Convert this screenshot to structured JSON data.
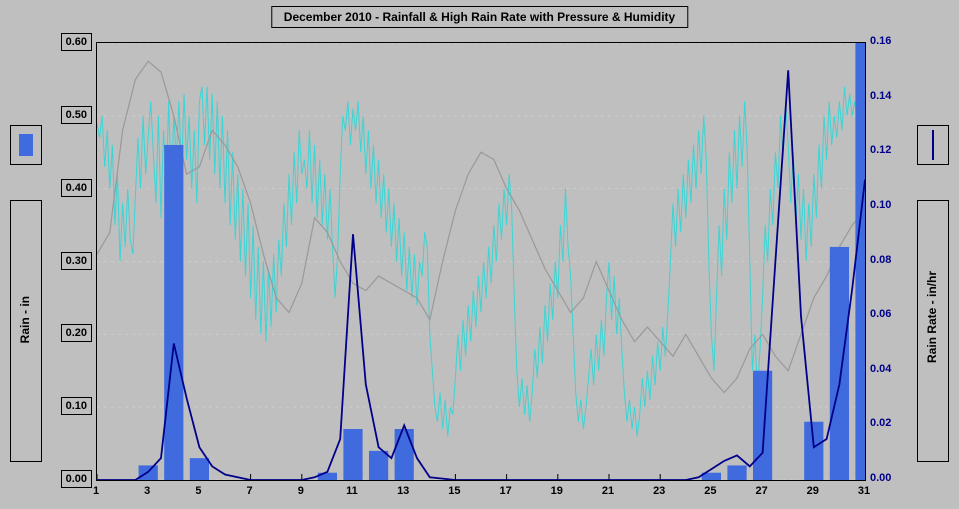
{
  "title": "December 2010 - Rainfall & High Rain Rate with Pressure & Humidity",
  "left_axis": {
    "label": "Rain - in",
    "min": 0.0,
    "max": 0.6,
    "ticks": [
      0.0,
      0.1,
      0.2,
      0.3,
      0.4,
      0.5,
      0.6
    ],
    "tick_labels": [
      "0.00",
      "0.10",
      "0.20",
      "0.30",
      "0.40",
      "0.50",
      "0.60"
    ],
    "color": "#000000"
  },
  "right_axis": {
    "label": "Rain Rate - in/hr",
    "min": 0.0,
    "max": 0.16,
    "ticks": [
      0.0,
      0.02,
      0.04,
      0.06,
      0.08,
      0.1,
      0.12,
      0.14,
      0.16
    ],
    "tick_labels": [
      "0.00",
      "0.02",
      "0.04",
      "0.06",
      "0.08",
      "0.10",
      "0.12",
      "0.14",
      "0.16"
    ],
    "color": "#00008b"
  },
  "x_axis": {
    "min": 1,
    "max": 31,
    "ticks": [
      1,
      3,
      5,
      7,
      9,
      11,
      13,
      15,
      17,
      19,
      21,
      23,
      25,
      27,
      29,
      31
    ],
    "tick_color": "#000000"
  },
  "bars": {
    "color": "#3f6bdf",
    "width": 0.75,
    "data": [
      {
        "x": 3,
        "y": 0.02
      },
      {
        "x": 4,
        "y": 0.46
      },
      {
        "x": 5,
        "y": 0.03
      },
      {
        "x": 10,
        "y": 0.01
      },
      {
        "x": 11,
        "y": 0.07
      },
      {
        "x": 12,
        "y": 0.04
      },
      {
        "x": 13,
        "y": 0.07
      },
      {
        "x": 25,
        "y": 0.01
      },
      {
        "x": 26,
        "y": 0.02
      },
      {
        "x": 27,
        "y": 0.15
      },
      {
        "x": 29,
        "y": 0.08
      },
      {
        "x": 30,
        "y": 0.32
      },
      {
        "x": 31,
        "y": 0.6
      }
    ]
  },
  "rate_line": {
    "color": "#00008b",
    "width": 1.8,
    "points": [
      [
        1,
        0.0
      ],
      [
        2,
        0.0
      ],
      [
        2.5,
        0.0
      ],
      [
        3,
        0.003
      ],
      [
        3.5,
        0.008
      ],
      [
        4,
        0.05
      ],
      [
        4.5,
        0.03
      ],
      [
        5,
        0.012
      ],
      [
        5.5,
        0.005
      ],
      [
        6,
        0.002
      ],
      [
        7,
        0.0
      ],
      [
        8,
        0.0
      ],
      [
        9,
        0.0
      ],
      [
        9.5,
        0.001
      ],
      [
        10,
        0.003
      ],
      [
        10.5,
        0.015
      ],
      [
        11,
        0.09
      ],
      [
        11.5,
        0.035
      ],
      [
        12,
        0.012
      ],
      [
        12.5,
        0.008
      ],
      [
        13,
        0.02
      ],
      [
        13.5,
        0.008
      ],
      [
        14,
        0.001
      ],
      [
        15,
        0.0
      ],
      [
        16,
        0.0
      ],
      [
        17,
        0.0
      ],
      [
        18,
        0.0
      ],
      [
        19,
        0.0
      ],
      [
        20,
        0.0
      ],
      [
        21,
        0.0
      ],
      [
        22,
        0.0
      ],
      [
        23,
        0.0
      ],
      [
        24,
        0.0
      ],
      [
        24.5,
        0.001
      ],
      [
        25,
        0.004
      ],
      [
        25.5,
        0.007
      ],
      [
        26,
        0.009
      ],
      [
        26.5,
        0.005
      ],
      [
        27,
        0.01
      ],
      [
        27.5,
        0.08
      ],
      [
        28,
        0.15
      ],
      [
        28.5,
        0.06
      ],
      [
        29,
        0.012
      ],
      [
        29.5,
        0.015
      ],
      [
        30,
        0.035
      ],
      [
        30.5,
        0.07
      ],
      [
        31,
        0.11
      ]
    ]
  },
  "pressure_line": {
    "color": "#999999",
    "width": 1.2,
    "points": [
      [
        1,
        0.31
      ],
      [
        1.5,
        0.34
      ],
      [
        2,
        0.48
      ],
      [
        2.5,
        0.55
      ],
      [
        3,
        0.575
      ],
      [
        3.5,
        0.56
      ],
      [
        4,
        0.5
      ],
      [
        4.5,
        0.42
      ],
      [
        5,
        0.43
      ],
      [
        5.5,
        0.48
      ],
      [
        6,
        0.46
      ],
      [
        6.5,
        0.43
      ],
      [
        7,
        0.38
      ],
      [
        7.5,
        0.31
      ],
      [
        8,
        0.25
      ],
      [
        8.5,
        0.23
      ],
      [
        9,
        0.27
      ],
      [
        9.5,
        0.36
      ],
      [
        10,
        0.34
      ],
      [
        10.5,
        0.3
      ],
      [
        11,
        0.27
      ],
      [
        11.5,
        0.26
      ],
      [
        12,
        0.28
      ],
      [
        12.5,
        0.27
      ],
      [
        13,
        0.26
      ],
      [
        13.5,
        0.25
      ],
      [
        14,
        0.22
      ],
      [
        14.5,
        0.3
      ],
      [
        15,
        0.37
      ],
      [
        15.5,
        0.42
      ],
      [
        16,
        0.45
      ],
      [
        16.5,
        0.44
      ],
      [
        17,
        0.4
      ],
      [
        17.5,
        0.37
      ],
      [
        18,
        0.33
      ],
      [
        18.5,
        0.29
      ],
      [
        19,
        0.26
      ],
      [
        19.5,
        0.23
      ],
      [
        20,
        0.25
      ],
      [
        20.5,
        0.3
      ],
      [
        21,
        0.26
      ],
      [
        21.5,
        0.22
      ],
      [
        22,
        0.19
      ],
      [
        22.5,
        0.21
      ],
      [
        23,
        0.19
      ],
      [
        23.5,
        0.17
      ],
      [
        24,
        0.2
      ],
      [
        24.5,
        0.17
      ],
      [
        25,
        0.14
      ],
      [
        25.5,
        0.12
      ],
      [
        26,
        0.14
      ],
      [
        26.5,
        0.18
      ],
      [
        27,
        0.2
      ],
      [
        27.5,
        0.17
      ],
      [
        28,
        0.15
      ],
      [
        28.5,
        0.2
      ],
      [
        29,
        0.25
      ],
      [
        29.5,
        0.28
      ],
      [
        30,
        0.32
      ],
      [
        30.5,
        0.35
      ],
      [
        31,
        0.37
      ]
    ]
  },
  "humidity_line": {
    "color": "#3bd5d5",
    "width": 1.0,
    "points": [
      [
        1,
        0.49
      ],
      [
        1.1,
        0.47
      ],
      [
        1.2,
        0.5
      ],
      [
        1.3,
        0.43
      ],
      [
        1.4,
        0.48
      ],
      [
        1.5,
        0.4
      ],
      [
        1.6,
        0.46
      ],
      [
        1.7,
        0.35
      ],
      [
        1.8,
        0.42
      ],
      [
        1.9,
        0.3
      ],
      [
        2,
        0.38
      ],
      [
        2.1,
        0.32
      ],
      [
        2.2,
        0.4
      ],
      [
        2.3,
        0.33
      ],
      [
        2.4,
        0.31
      ],
      [
        2.5,
        0.39
      ],
      [
        2.6,
        0.47
      ],
      [
        2.7,
        0.4
      ],
      [
        2.8,
        0.5
      ],
      [
        2.9,
        0.42
      ],
      [
        3,
        0.47
      ],
      [
        3.1,
        0.52
      ],
      [
        3.2,
        0.45
      ],
      [
        3.3,
        0.38
      ],
      [
        3.4,
        0.5
      ],
      [
        3.5,
        0.36
      ],
      [
        3.6,
        0.48
      ],
      [
        3.7,
        0.4
      ],
      [
        3.8,
        0.52
      ],
      [
        3.9,
        0.4
      ],
      [
        4,
        0.5
      ],
      [
        4.1,
        0.44
      ],
      [
        4.2,
        0.52
      ],
      [
        4.3,
        0.42
      ],
      [
        4.4,
        0.53
      ],
      [
        4.5,
        0.44
      ],
      [
        4.6,
        0.5
      ],
      [
        4.7,
        0.4
      ],
      [
        4.8,
        0.48
      ],
      [
        4.9,
        0.38
      ],
      [
        5,
        0.52
      ],
      [
        5.1,
        0.54
      ],
      [
        5.2,
        0.46
      ],
      [
        5.3,
        0.54
      ],
      [
        5.4,
        0.44
      ],
      [
        5.5,
        0.53
      ],
      [
        5.6,
        0.42
      ],
      [
        5.7,
        0.52
      ],
      [
        5.8,
        0.4
      ],
      [
        5.9,
        0.5
      ],
      [
        6,
        0.38
      ],
      [
        6.1,
        0.48
      ],
      [
        6.2,
        0.35
      ],
      [
        6.3,
        0.45
      ],
      [
        6.4,
        0.33
      ],
      [
        6.5,
        0.42
      ],
      [
        6.6,
        0.3
      ],
      [
        6.7,
        0.4
      ],
      [
        6.8,
        0.28
      ],
      [
        6.9,
        0.38
      ],
      [
        7,
        0.25
      ],
      [
        7.1,
        0.35
      ],
      [
        7.2,
        0.22
      ],
      [
        7.3,
        0.32
      ],
      [
        7.4,
        0.2
      ],
      [
        7.5,
        0.3
      ],
      [
        7.6,
        0.19
      ],
      [
        7.7,
        0.29
      ],
      [
        7.8,
        0.21
      ],
      [
        7.9,
        0.31
      ],
      [
        8,
        0.23
      ],
      [
        8.1,
        0.33
      ],
      [
        8.2,
        0.28
      ],
      [
        8.3,
        0.38
      ],
      [
        8.4,
        0.32
      ],
      [
        8.5,
        0.42
      ],
      [
        8.6,
        0.35
      ],
      [
        8.7,
        0.45
      ],
      [
        8.8,
        0.38
      ],
      [
        8.9,
        0.48
      ],
      [
        9,
        0.42
      ],
      [
        9.1,
        0.44
      ],
      [
        9.2,
        0.4
      ],
      [
        9.3,
        0.48
      ],
      [
        9.4,
        0.38
      ],
      [
        9.5,
        0.46
      ],
      [
        9.6,
        0.36
      ],
      [
        9.7,
        0.44
      ],
      [
        9.8,
        0.35
      ],
      [
        9.9,
        0.42
      ],
      [
        10,
        0.33
      ],
      [
        10.1,
        0.4
      ],
      [
        10.2,
        0.32
      ],
      [
        10.3,
        0.25
      ],
      [
        10.4,
        0.31
      ],
      [
        10.5,
        0.42
      ],
      [
        10.6,
        0.5
      ],
      [
        10.7,
        0.48
      ],
      [
        10.8,
        0.52
      ],
      [
        10.9,
        0.46
      ],
      [
        11,
        0.51
      ],
      [
        11.1,
        0.48
      ],
      [
        11.2,
        0.52
      ],
      [
        11.3,
        0.45
      ],
      [
        11.4,
        0.5
      ],
      [
        11.5,
        0.42
      ],
      [
        11.6,
        0.48
      ],
      [
        11.7,
        0.4
      ],
      [
        11.8,
        0.46
      ],
      [
        11.9,
        0.38
      ],
      [
        12,
        0.44
      ],
      [
        12.1,
        0.36
      ],
      [
        12.2,
        0.42
      ],
      [
        12.3,
        0.34
      ],
      [
        12.4,
        0.4
      ],
      [
        12.5,
        0.32
      ],
      [
        12.6,
        0.38
      ],
      [
        12.7,
        0.3
      ],
      [
        12.8,
        0.36
      ],
      [
        12.9,
        0.28
      ],
      [
        13,
        0.34
      ],
      [
        13.1,
        0.26
      ],
      [
        13.2,
        0.32
      ],
      [
        13.3,
        0.25
      ],
      [
        13.4,
        0.31
      ],
      [
        13.5,
        0.24
      ],
      [
        13.6,
        0.3
      ],
      [
        13.7,
        0.28
      ],
      [
        13.8,
        0.34
      ],
      [
        13.9,
        0.32
      ],
      [
        14,
        0.2
      ],
      [
        14.1,
        0.15
      ],
      [
        14.2,
        0.1
      ],
      [
        14.3,
        0.08
      ],
      [
        14.4,
        0.12
      ],
      [
        14.5,
        0.07
      ],
      [
        14.6,
        0.11
      ],
      [
        14.7,
        0.06
      ],
      [
        14.8,
        0.1
      ],
      [
        14.9,
        0.09
      ],
      [
        15,
        0.14
      ],
      [
        15.1,
        0.2
      ],
      [
        15.2,
        0.15
      ],
      [
        15.3,
        0.22
      ],
      [
        15.4,
        0.17
      ],
      [
        15.5,
        0.24
      ],
      [
        15.6,
        0.19
      ],
      [
        15.7,
        0.26
      ],
      [
        15.8,
        0.21
      ],
      [
        15.9,
        0.28
      ],
      [
        16,
        0.23
      ],
      [
        16.1,
        0.3
      ],
      [
        16.2,
        0.25
      ],
      [
        16.3,
        0.32
      ],
      [
        16.4,
        0.27
      ],
      [
        16.5,
        0.35
      ],
      [
        16.6,
        0.3
      ],
      [
        16.7,
        0.38
      ],
      [
        16.8,
        0.33
      ],
      [
        16.9,
        0.4
      ],
      [
        17,
        0.35
      ],
      [
        17.1,
        0.42
      ],
      [
        17.2,
        0.37
      ],
      [
        17.3,
        0.25
      ],
      [
        17.4,
        0.15
      ],
      [
        17.5,
        0.1
      ],
      [
        17.6,
        0.14
      ],
      [
        17.7,
        0.09
      ],
      [
        17.8,
        0.13
      ],
      [
        17.9,
        0.08
      ],
      [
        18,
        0.12
      ],
      [
        18.1,
        0.18
      ],
      [
        18.2,
        0.14
      ],
      [
        18.3,
        0.21
      ],
      [
        18.4,
        0.16
      ],
      [
        18.5,
        0.24
      ],
      [
        18.6,
        0.19
      ],
      [
        18.7,
        0.27
      ],
      [
        18.8,
        0.22
      ],
      [
        18.9,
        0.3
      ],
      [
        19,
        0.25
      ],
      [
        19.1,
        0.35
      ],
      [
        19.2,
        0.3
      ],
      [
        19.3,
        0.4
      ],
      [
        19.4,
        0.32
      ],
      [
        19.5,
        0.28
      ],
      [
        19.6,
        0.2
      ],
      [
        19.7,
        0.12
      ],
      [
        19.8,
        0.08
      ],
      [
        19.9,
        0.11
      ],
      [
        20,
        0.07
      ],
      [
        20.1,
        0.1
      ],
      [
        20.2,
        0.14
      ],
      [
        20.3,
        0.18
      ],
      [
        20.4,
        0.13
      ],
      [
        20.5,
        0.2
      ],
      [
        20.6,
        0.15
      ],
      [
        20.7,
        0.22
      ],
      [
        20.8,
        0.17
      ],
      [
        20.9,
        0.25
      ],
      [
        21,
        0.3
      ],
      [
        21.1,
        0.22
      ],
      [
        21.2,
        0.28
      ],
      [
        21.3,
        0.2
      ],
      [
        21.4,
        0.25
      ],
      [
        21.5,
        0.18
      ],
      [
        21.6,
        0.12
      ],
      [
        21.7,
        0.08
      ],
      [
        21.8,
        0.11
      ],
      [
        21.9,
        0.07
      ],
      [
        22,
        0.1
      ],
      [
        22.1,
        0.06
      ],
      [
        22.2,
        0.09
      ],
      [
        22.3,
        0.14
      ],
      [
        22.4,
        0.1
      ],
      [
        22.5,
        0.15
      ],
      [
        22.6,
        0.11
      ],
      [
        22.7,
        0.17
      ],
      [
        22.8,
        0.13
      ],
      [
        22.9,
        0.19
      ],
      [
        23,
        0.15
      ],
      [
        23.1,
        0.21
      ],
      [
        23.2,
        0.17
      ],
      [
        23.3,
        0.23
      ],
      [
        23.4,
        0.3
      ],
      [
        23.5,
        0.38
      ],
      [
        23.6,
        0.32
      ],
      [
        23.7,
        0.4
      ],
      [
        23.8,
        0.34
      ],
      [
        23.9,
        0.42
      ],
      [
        24,
        0.36
      ],
      [
        24.1,
        0.44
      ],
      [
        24.2,
        0.38
      ],
      [
        24.3,
        0.46
      ],
      [
        24.4,
        0.4
      ],
      [
        24.5,
        0.48
      ],
      [
        24.6,
        0.42
      ],
      [
        24.7,
        0.5
      ],
      [
        24.8,
        0.44
      ],
      [
        24.9,
        0.3
      ],
      [
        25,
        0.2
      ],
      [
        25.1,
        0.15
      ],
      [
        25.2,
        0.25
      ],
      [
        25.3,
        0.35
      ],
      [
        25.4,
        0.28
      ],
      [
        25.5,
        0.4
      ],
      [
        25.6,
        0.33
      ],
      [
        25.7,
        0.45
      ],
      [
        25.8,
        0.38
      ],
      [
        25.9,
        0.48
      ],
      [
        26,
        0.4
      ],
      [
        26.1,
        0.5
      ],
      [
        26.2,
        0.43
      ],
      [
        26.3,
        0.52
      ],
      [
        26.4,
        0.45
      ],
      [
        26.5,
        0.3
      ],
      [
        26.6,
        0.15
      ],
      [
        26.7,
        0.2
      ],
      [
        26.8,
        0.12
      ],
      [
        26.9,
        0.18
      ],
      [
        27,
        0.25
      ],
      [
        27.1,
        0.35
      ],
      [
        27.2,
        0.3
      ],
      [
        27.3,
        0.4
      ],
      [
        27.4,
        0.35
      ],
      [
        27.5,
        0.45
      ],
      [
        27.6,
        0.4
      ],
      [
        27.7,
        0.5
      ],
      [
        27.8,
        0.44
      ],
      [
        27.9,
        0.52
      ],
      [
        28,
        0.46
      ],
      [
        28.1,
        0.38
      ],
      [
        28.2,
        0.45
      ],
      [
        28.3,
        0.35
      ],
      [
        28.4,
        0.42
      ],
      [
        28.5,
        0.33
      ],
      [
        28.6,
        0.4
      ],
      [
        28.7,
        0.3
      ],
      [
        28.8,
        0.38
      ],
      [
        28.9,
        0.32
      ],
      [
        29,
        0.42
      ],
      [
        29.1,
        0.36
      ],
      [
        29.2,
        0.46
      ],
      [
        29.3,
        0.4
      ],
      [
        29.4,
        0.5
      ],
      [
        29.5,
        0.44
      ],
      [
        29.6,
        0.52
      ],
      [
        29.7,
        0.46
      ],
      [
        29.8,
        0.5
      ],
      [
        29.9,
        0.47
      ],
      [
        30,
        0.52
      ],
      [
        30.1,
        0.48
      ],
      [
        30.2,
        0.54
      ],
      [
        30.3,
        0.5
      ],
      [
        30.4,
        0.53
      ],
      [
        30.5,
        0.5
      ],
      [
        30.6,
        0.52
      ],
      [
        30.7,
        0.49
      ],
      [
        30.8,
        0.53
      ],
      [
        30.9,
        0.5
      ],
      [
        31,
        0.54
      ],
      [
        31,
        0.51
      ]
    ]
  },
  "background_color": "#bfbfbf",
  "grid_color": "#cccccc"
}
